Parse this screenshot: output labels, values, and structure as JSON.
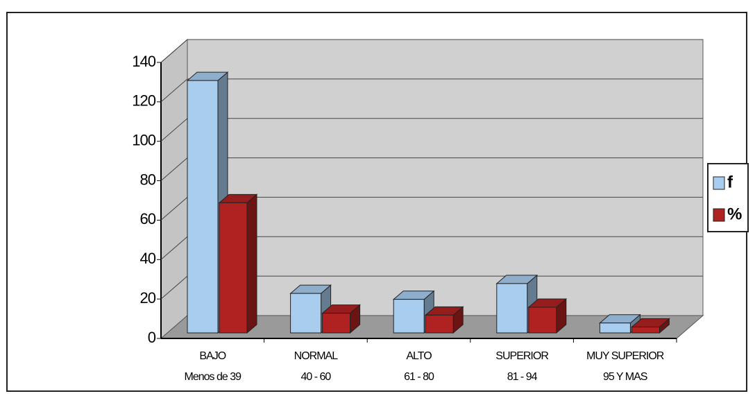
{
  "chart_data": {
    "type": "bar3d",
    "categories": [
      [
        "BAJO",
        "Menos de 39"
      ],
      [
        "NORMAL",
        "40 - 60"
      ],
      [
        "ALTO",
        "61 - 80"
      ],
      [
        "SUPERIOR",
        "81 - 94"
      ],
      [
        "MUY SUPERIOR",
        "95 Y MAS"
      ]
    ],
    "series": [
      {
        "name": "f",
        "color": "#a8cdef",
        "values": [
          128,
          20,
          17,
          25,
          5
        ]
      },
      {
        "name": "%",
        "color": "#b02222",
        "values": [
          66,
          10,
          9,
          13,
          3
        ]
      }
    ],
    "ylim": [
      0,
      140
    ],
    "yticks": [
      0,
      20,
      40,
      60,
      80,
      100,
      120,
      140
    ],
    "grid": true,
    "legend": "right"
  }
}
